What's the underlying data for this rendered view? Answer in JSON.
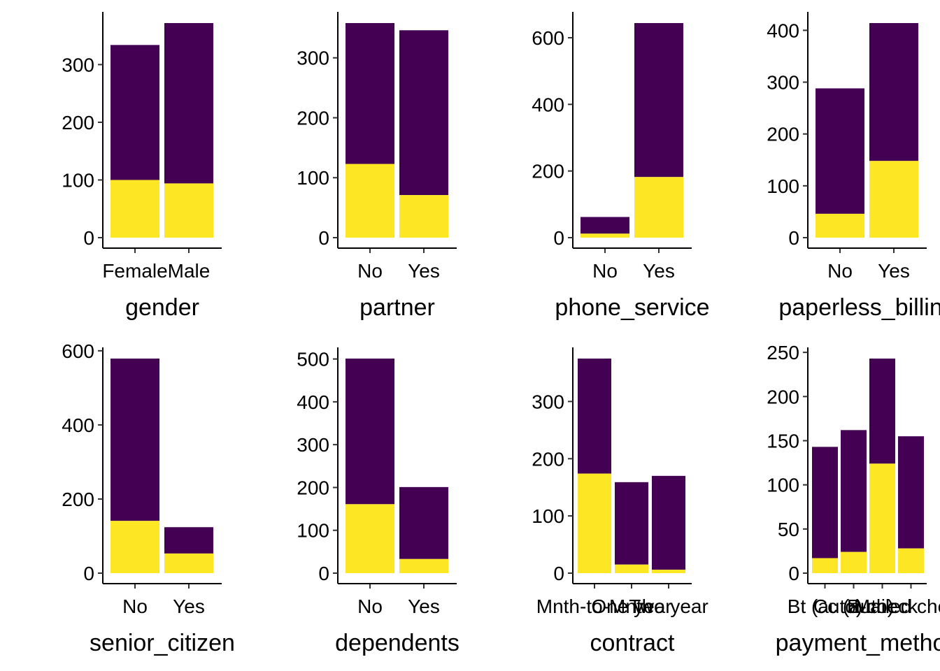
{
  "colors": {
    "churn_no": "#440154",
    "churn_yes": "#FDE725"
  },
  "chart_data": [
    {
      "type": "bar",
      "stacked": true,
      "xlabel": "gender",
      "categories": [
        "Female",
        "Male"
      ],
      "series": [
        {
          "values": [
            100,
            94
          ]
        },
        {
          "values": [
            234,
            278
          ]
        }
      ],
      "ylim": [
        0,
        372
      ],
      "yticks": [
        0,
        100,
        200,
        300
      ]
    },
    {
      "type": "bar",
      "stacked": true,
      "xlabel": "partner",
      "categories": [
        "No",
        "Yes"
      ],
      "series": [
        {
          "values": [
            123,
            71
          ]
        },
        {
          "values": [
            235,
            275
          ]
        }
      ],
      "ylim": [
        0,
        358
      ],
      "yticks": [
        0,
        100,
        200,
        300
      ]
    },
    {
      "type": "bar",
      "stacked": true,
      "xlabel": "phone_service",
      "categories": [
        "No",
        "Yes"
      ],
      "series": [
        {
          "values": [
            12,
            182
          ]
        },
        {
          "values": [
            50,
            462
          ]
        }
      ],
      "ylim": [
        0,
        644
      ],
      "yticks": [
        0,
        200,
        400,
        600
      ]
    },
    {
      "type": "bar",
      "stacked": true,
      "xlabel": "paperless_billing",
      "categories": [
        "No",
        "Yes"
      ],
      "series": [
        {
          "values": [
            46,
            148
          ]
        },
        {
          "values": [
            242,
            266
          ]
        }
      ],
      "ylim": [
        0,
        414
      ],
      "yticks": [
        0,
        100,
        200,
        300,
        400
      ]
    },
    {
      "type": "bar",
      "stacked": true,
      "xlabel": "senior_citizen",
      "categories": [
        "No",
        "Yes"
      ],
      "series": [
        {
          "values": [
            141,
            53
          ]
        },
        {
          "values": [
            438,
            71
          ]
        }
      ],
      "ylim": [
        0,
        579
      ],
      "yticks": [
        0,
        200,
        400,
        600
      ]
    },
    {
      "type": "bar",
      "stacked": true,
      "xlabel": "dependents",
      "categories": [
        "No",
        "Yes"
      ],
      "series": [
        {
          "values": [
            161,
            33
          ]
        },
        {
          "values": [
            340,
            168
          ]
        }
      ],
      "ylim": [
        0,
        501
      ],
      "yticks": [
        0,
        100,
        200,
        300,
        400,
        500
      ]
    },
    {
      "type": "bar",
      "stacked": true,
      "xlabel": "contract",
      "categories": [
        "Mnth-to-Mnth",
        "One year",
        "Two year"
      ],
      "series": [
        {
          "values": [
            174,
            15,
            6
          ]
        },
        {
          "values": [
            201,
            144,
            164
          ]
        }
      ],
      "ylim": [
        0,
        375
      ],
      "yticks": [
        0,
        100,
        200,
        300
      ]
    },
    {
      "type": "bar",
      "stacked": true,
      "xlabel": "payment_method",
      "categories": [
        "Bt (auto)",
        "Cc (auto)",
        "E-check",
        "Mailed check"
      ],
      "series": [
        {
          "values": [
            17,
            24,
            124,
            28
          ]
        },
        {
          "values": [
            126,
            138,
            119,
            127
          ]
        }
      ],
      "ylim": [
        0,
        243
      ],
      "yticks": [
        0,
        50,
        100,
        150,
        200,
        250
      ]
    }
  ]
}
